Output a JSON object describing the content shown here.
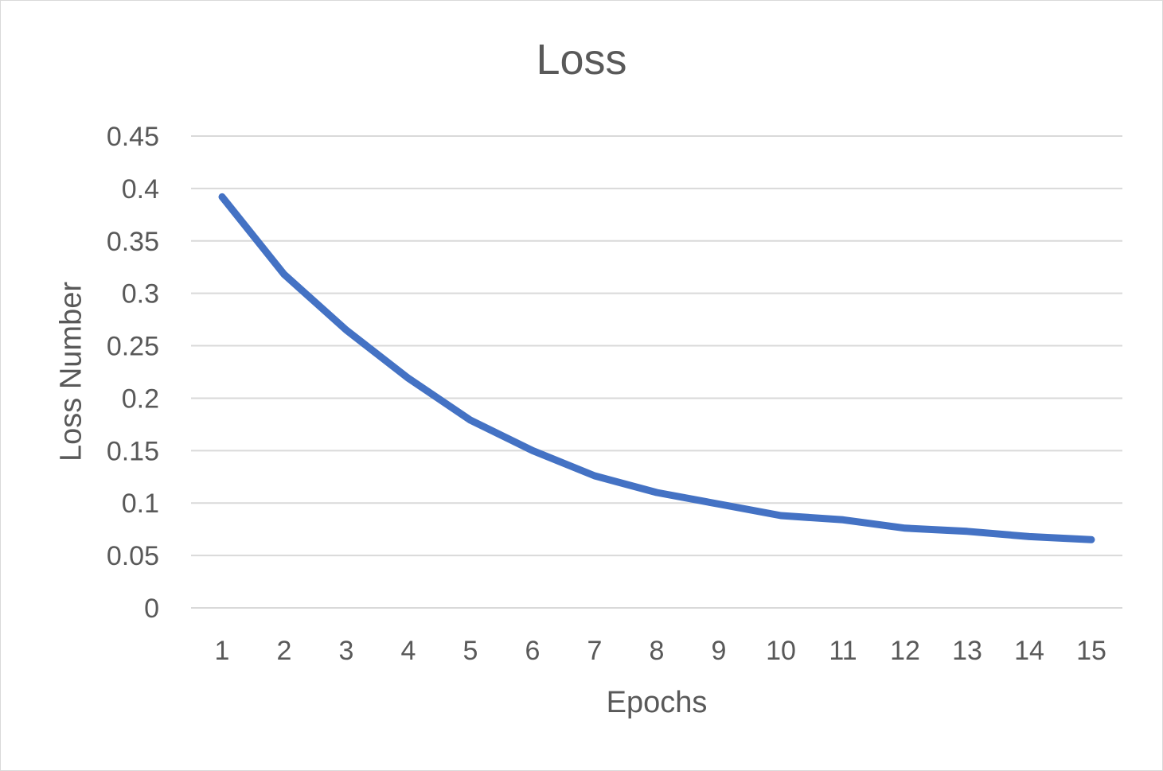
{
  "chart_data": {
    "type": "line",
    "title": "Loss",
    "xlabel": "Epochs",
    "ylabel": "Loss Number",
    "categories": [
      "1",
      "2",
      "3",
      "4",
      "5",
      "6",
      "7",
      "8",
      "9",
      "10",
      "11",
      "12",
      "13",
      "14",
      "15"
    ],
    "series": [
      {
        "values": [
          0.392,
          0.318,
          0.265,
          0.219,
          0.179,
          0.15,
          0.126,
          0.11,
          0.099,
          0.088,
          0.084,
          0.076,
          0.073,
          0.068,
          0.065
        ],
        "color": "#4472c4"
      }
    ],
    "y_ticks": [
      "0",
      "0.05",
      "0.1",
      "0.15",
      "0.2",
      "0.25",
      "0.3",
      "0.35",
      "0.4",
      "0.45"
    ],
    "ylim": [
      0,
      0.45
    ],
    "grid": true,
    "legend": "none"
  }
}
